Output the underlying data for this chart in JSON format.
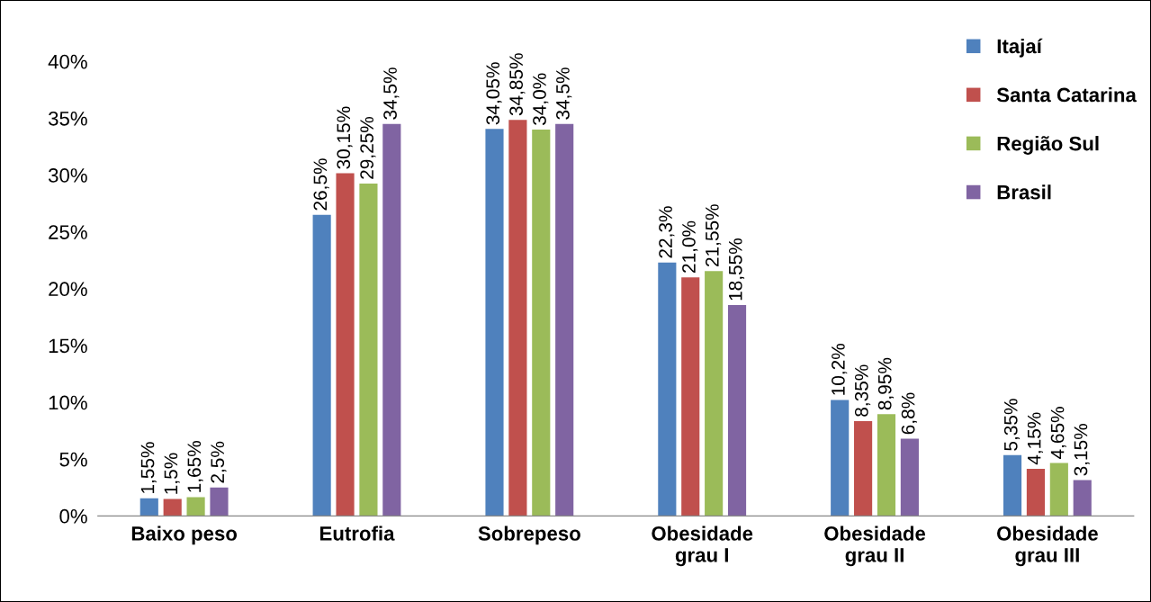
{
  "chart_data": {
    "type": "bar",
    "categories": [
      "Baixo peso",
      "Eutrofia",
      "Sobrepeso",
      "Obesidade\ngrau I",
      "Obesidade\ngrau II",
      "Obesidade\ngrau III"
    ],
    "series": [
      {
        "name": "Itajaí",
        "color": "#4f81bd",
        "values": [
          1.55,
          26.5,
          34.05,
          22.3,
          10.2,
          5.35
        ],
        "value_labels": [
          "1,55%",
          "26,5%",
          "34,05%",
          "22,3%",
          "10,2%",
          "5,35%"
        ]
      },
      {
        "name": "Santa Catarina",
        "color": "#c0504d",
        "values": [
          1.5,
          30.15,
          34.85,
          21.0,
          8.35,
          4.15
        ],
        "value_labels": [
          "1,5%",
          "30,15%",
          "34,85%",
          "21,0%",
          "8,35%",
          "4,15%"
        ]
      },
      {
        "name": "Região Sul",
        "color": "#9bbb59",
        "values": [
          1.65,
          29.25,
          34.0,
          21.55,
          8.95,
          4.65
        ],
        "value_labels": [
          "1,65%",
          "29,25%",
          "34,0%",
          "21,55%",
          "8,95%",
          "4,65%"
        ]
      },
      {
        "name": "Brasil",
        "color": "#8064a2",
        "values": [
          2.5,
          34.5,
          34.5,
          18.55,
          6.8,
          3.15
        ],
        "value_labels": [
          "2,5%",
          "34,5%",
          "34,5%",
          "18,55%",
          "6,8%",
          "3,15%"
        ]
      }
    ],
    "ylim": [
      0,
      40
    ],
    "yticks": [
      {
        "value": 0,
        "label": "0%"
      },
      {
        "value": 5,
        "label": "5%"
      },
      {
        "value": 10,
        "label": "10%"
      },
      {
        "value": 15,
        "label": "15%"
      },
      {
        "value": 20,
        "label": "20%"
      },
      {
        "value": 25,
        "label": "25%"
      },
      {
        "value": 30,
        "label": "30%"
      },
      {
        "value": 35,
        "label": "35%"
      },
      {
        "value": 40,
        "label": "40%"
      }
    ],
    "grid": false,
    "legend": "top right"
  }
}
